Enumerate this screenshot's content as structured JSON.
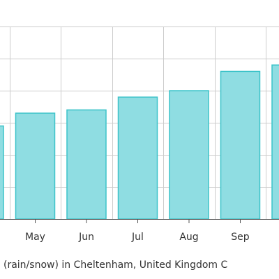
{
  "chart_data": {
    "type": "bar",
    "categories": [
      "",
      "May",
      "Jun",
      "Jul",
      "Aug",
      "Sep",
      ""
    ],
    "values": [
      29,
      33,
      34,
      38,
      40,
      46,
      48
    ],
    "ylim": [
      0,
      60
    ],
    "grid": true,
    "colors": {
      "bar": "#8fdde2",
      "bar_stroke": "#3cc3c9",
      "grid": "#cccccc",
      "axis": "#555555"
    }
  },
  "caption": "(rain/snow) in Cheltenham, United Kingdom    C"
}
